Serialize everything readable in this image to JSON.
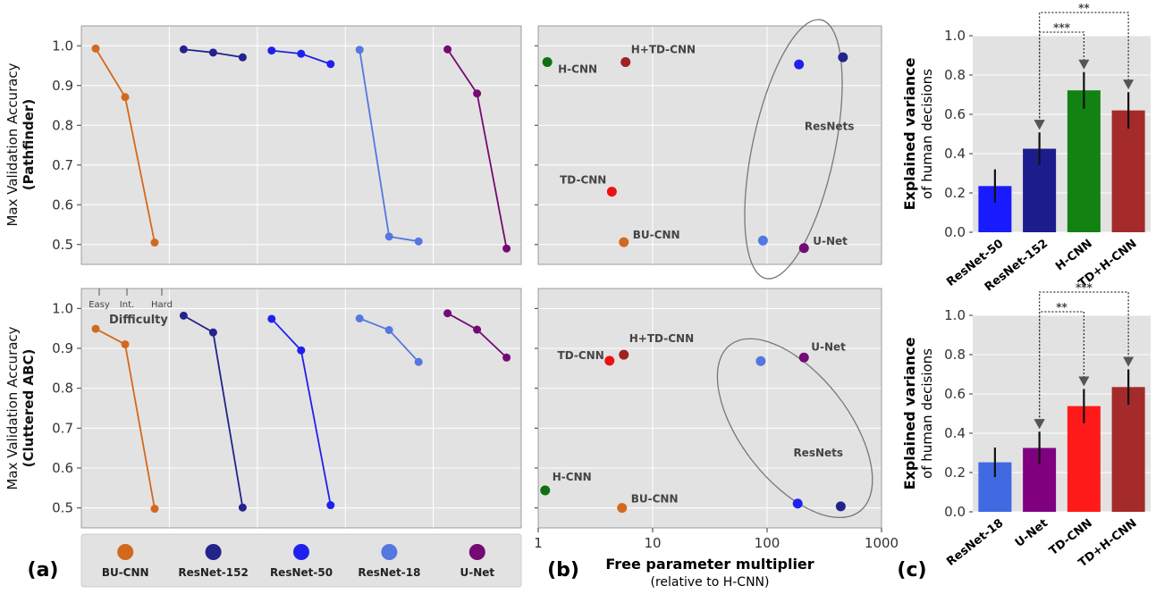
{
  "colors": {
    "bu_cnn": "#d2691e",
    "resnet152": "#23238b",
    "resnet50": "#2020ee",
    "resnet18": "#5577e0",
    "unet": "#750a75",
    "hcnn": "#107010",
    "htdcnn": "#a02020",
    "tdcnn": "#ee1111",
    "bar_resnet50": "#1a1aff",
    "bar_resnet152": "#1c1c8c",
    "bar_hcnn": "#128212",
    "bar_tdhcnn": "#a52a2a",
    "bar_resnet18": "#4169e1",
    "bar_unet": "#800080",
    "bar_tdcnn": "#ff1a1a",
    "bar_tdhcnn2": "#a52a2a"
  },
  "legend": {
    "items": [
      {
        "name": "BU-CNN",
        "color": "#d2691e"
      },
      {
        "name": "ResNet-152",
        "color": "#23238b"
      },
      {
        "name": "ResNet-50",
        "color": "#2020ee"
      },
      {
        "name": "ResNet-18",
        "color": "#5577e0"
      },
      {
        "name": "U-Net",
        "color": "#750a75"
      }
    ]
  },
  "labels": {
    "panel_a": "(a)",
    "panel_b": "(b)",
    "panel_c": "(c)",
    "ylabel_main": "Max Validation Accuracy",
    "ylabel_top_sub": "(Pathfinder)",
    "ylabel_bottom_sub": "(Cluttered ABC)",
    "difficulty": "Difficulty",
    "diff_easy": "Easy",
    "diff_int": "Int.",
    "diff_hard": "Hard",
    "xlabel_b_main": "Free parameter multiplier",
    "xlabel_b_sub": "(relative to H-CNN)",
    "ev_main": "Explained variance",
    "ev_sub": "of human decisions",
    "resnets": "ResNets"
  },
  "chart_data": [
    {
      "id": "a_top",
      "type": "line",
      "title": "",
      "ylabel": "Max Validation Accuracy (Pathfinder)",
      "ylim": [
        0.45,
        1.05
      ],
      "yticks": [
        "1.0",
        "0.9",
        "0.8",
        "0.7",
        "0.6",
        "0.5"
      ],
      "x_categories": [
        "Easy",
        "Int.",
        "Hard"
      ],
      "series": [
        {
          "name": "BU-CNN",
          "values": [
            0.993,
            0.871,
            0.505
          ]
        },
        {
          "name": "ResNet-152",
          "values": [
            0.991,
            0.983,
            0.971
          ]
        },
        {
          "name": "ResNet-50",
          "values": [
            0.988,
            0.98,
            0.954
          ]
        },
        {
          "name": "ResNet-18",
          "values": [
            0.99,
            0.52,
            0.508
          ]
        },
        {
          "name": "U-Net",
          "values": [
            0.991,
            0.88,
            0.49
          ]
        }
      ]
    },
    {
      "id": "a_bottom",
      "type": "line",
      "title": "",
      "ylabel": "Max Validation Accuracy (Cluttered ABC)",
      "ylim": [
        0.45,
        1.05
      ],
      "yticks": [
        "1.0",
        "0.9",
        "0.8",
        "0.7",
        "0.6",
        "0.5"
      ],
      "x_categories": [
        "Easy",
        "Int.",
        "Hard"
      ],
      "series": [
        {
          "name": "BU-CNN",
          "values": [
            0.949,
            0.91,
            0.498
          ]
        },
        {
          "name": "ResNet-152",
          "values": [
            0.982,
            0.94,
            0.501
          ]
        },
        {
          "name": "ResNet-50",
          "values": [
            0.974,
            0.895,
            0.507
          ]
        },
        {
          "name": "ResNet-18",
          "values": [
            0.975,
            0.946,
            0.866
          ]
        },
        {
          "name": "U-Net",
          "values": [
            0.988,
            0.947,
            0.877
          ]
        }
      ]
    },
    {
      "id": "b_top",
      "type": "scatter",
      "xscale": "log",
      "xlim": [
        1,
        1000
      ],
      "ylim": [
        0.45,
        1.05
      ],
      "xlabel": "Free parameter multiplier (relative to H-CNN)",
      "points": [
        {
          "label": "H-CNN",
          "x": 1.2,
          "y": 0.959,
          "color": "#107010",
          "show_label": true
        },
        {
          "label": "H+TD-CNN",
          "x": 5.8,
          "y": 0.959,
          "color": "#a02020",
          "show_label": true
        },
        {
          "label": "TD-CNN",
          "x": 4.4,
          "y": 0.633,
          "color": "#ee1111",
          "show_label": true
        },
        {
          "label": "BU-CNN",
          "x": 5.6,
          "y": 0.506,
          "color": "#d2691e",
          "show_label": true
        },
        {
          "label": "ResNet-18",
          "x": 92,
          "y": 0.51,
          "color": "#5577e0",
          "show_label": false
        },
        {
          "label": "U-Net",
          "x": 210,
          "y": 0.491,
          "color": "#750a75",
          "show_label": true
        },
        {
          "label": "ResNet-50",
          "x": 190,
          "y": 0.953,
          "color": "#2020ee",
          "show_label": false
        },
        {
          "label": "ResNet-152",
          "x": 460,
          "y": 0.971,
          "color": "#23238b",
          "show_label": false
        }
      ],
      "annotation": "ResNets"
    },
    {
      "id": "b_bottom",
      "type": "scatter",
      "xscale": "log",
      "xlim": [
        1,
        1000
      ],
      "ylim": [
        0.45,
        1.05
      ],
      "xticks": [
        "1",
        "10",
        "100",
        "1000"
      ],
      "points": [
        {
          "label": "TD-CNN",
          "x": 4.2,
          "y": 0.869,
          "color": "#ee1111",
          "show_label": true
        },
        {
          "label": "H+TD-CNN",
          "x": 5.6,
          "y": 0.884,
          "color": "#a02020",
          "show_label": true
        },
        {
          "label": "U-Net",
          "x": 210,
          "y": 0.877,
          "color": "#750a75",
          "show_label": true
        },
        {
          "label": "ResNet-18",
          "x": 88,
          "y": 0.868,
          "color": "#5577e0",
          "show_label": false
        },
        {
          "label": "H-CNN",
          "x": 1.15,
          "y": 0.544,
          "color": "#107010",
          "show_label": true
        },
        {
          "label": "BU-CNN",
          "x": 5.4,
          "y": 0.5,
          "color": "#d2691e",
          "show_label": true
        },
        {
          "label": "ResNet-50",
          "x": 185,
          "y": 0.511,
          "color": "#2020ee",
          "show_label": false
        },
        {
          "label": "ResNet-152",
          "x": 440,
          "y": 0.504,
          "color": "#23238b",
          "show_label": false
        }
      ],
      "annotation": "ResNets"
    },
    {
      "id": "c_top",
      "type": "bar",
      "ylabel": "Explained variance of human decisions",
      "ylim": [
        0,
        1.0
      ],
      "yticks": [
        "1.0",
        "0.8",
        "0.6",
        "0.4",
        "0.2",
        "0.0"
      ],
      "categories": [
        "ResNet-50",
        "ResNet-152",
        "H-CNN",
        "TD+H-CNN"
      ],
      "values": [
        0.235,
        0.425,
        0.722,
        0.62
      ],
      "errors": [
        0.085,
        0.083,
        0.093,
        0.093
      ],
      "colors": [
        "#1a1aff",
        "#1c1c8c",
        "#128212",
        "#a52a2a"
      ],
      "significance": [
        {
          "from": 1,
          "to": 2,
          "label": "***",
          "level": 1
        },
        {
          "from": 1,
          "to": 3,
          "label": "**",
          "level": 2
        }
      ]
    },
    {
      "id": "c_bottom",
      "type": "bar",
      "ylabel": "Explained variance of human decisions",
      "ylim": [
        0,
        1.0
      ],
      "yticks": [
        "1.0",
        "0.8",
        "0.6",
        "0.4",
        "0.2",
        "0.0"
      ],
      "categories": [
        "ResNet-18",
        "U-Net",
        "TD-CNN",
        "TD+H-CNN"
      ],
      "values": [
        0.252,
        0.325,
        0.538,
        0.635
      ],
      "errors": [
        0.075,
        0.083,
        0.087,
        0.09
      ],
      "colors": [
        "#4169e1",
        "#800080",
        "#ff1a1a",
        "#a52a2a"
      ],
      "significance": [
        {
          "from": 1,
          "to": 2,
          "label": "**",
          "level": 1
        },
        {
          "from": 1,
          "to": 3,
          "label": "***",
          "level": 2
        }
      ]
    }
  ]
}
